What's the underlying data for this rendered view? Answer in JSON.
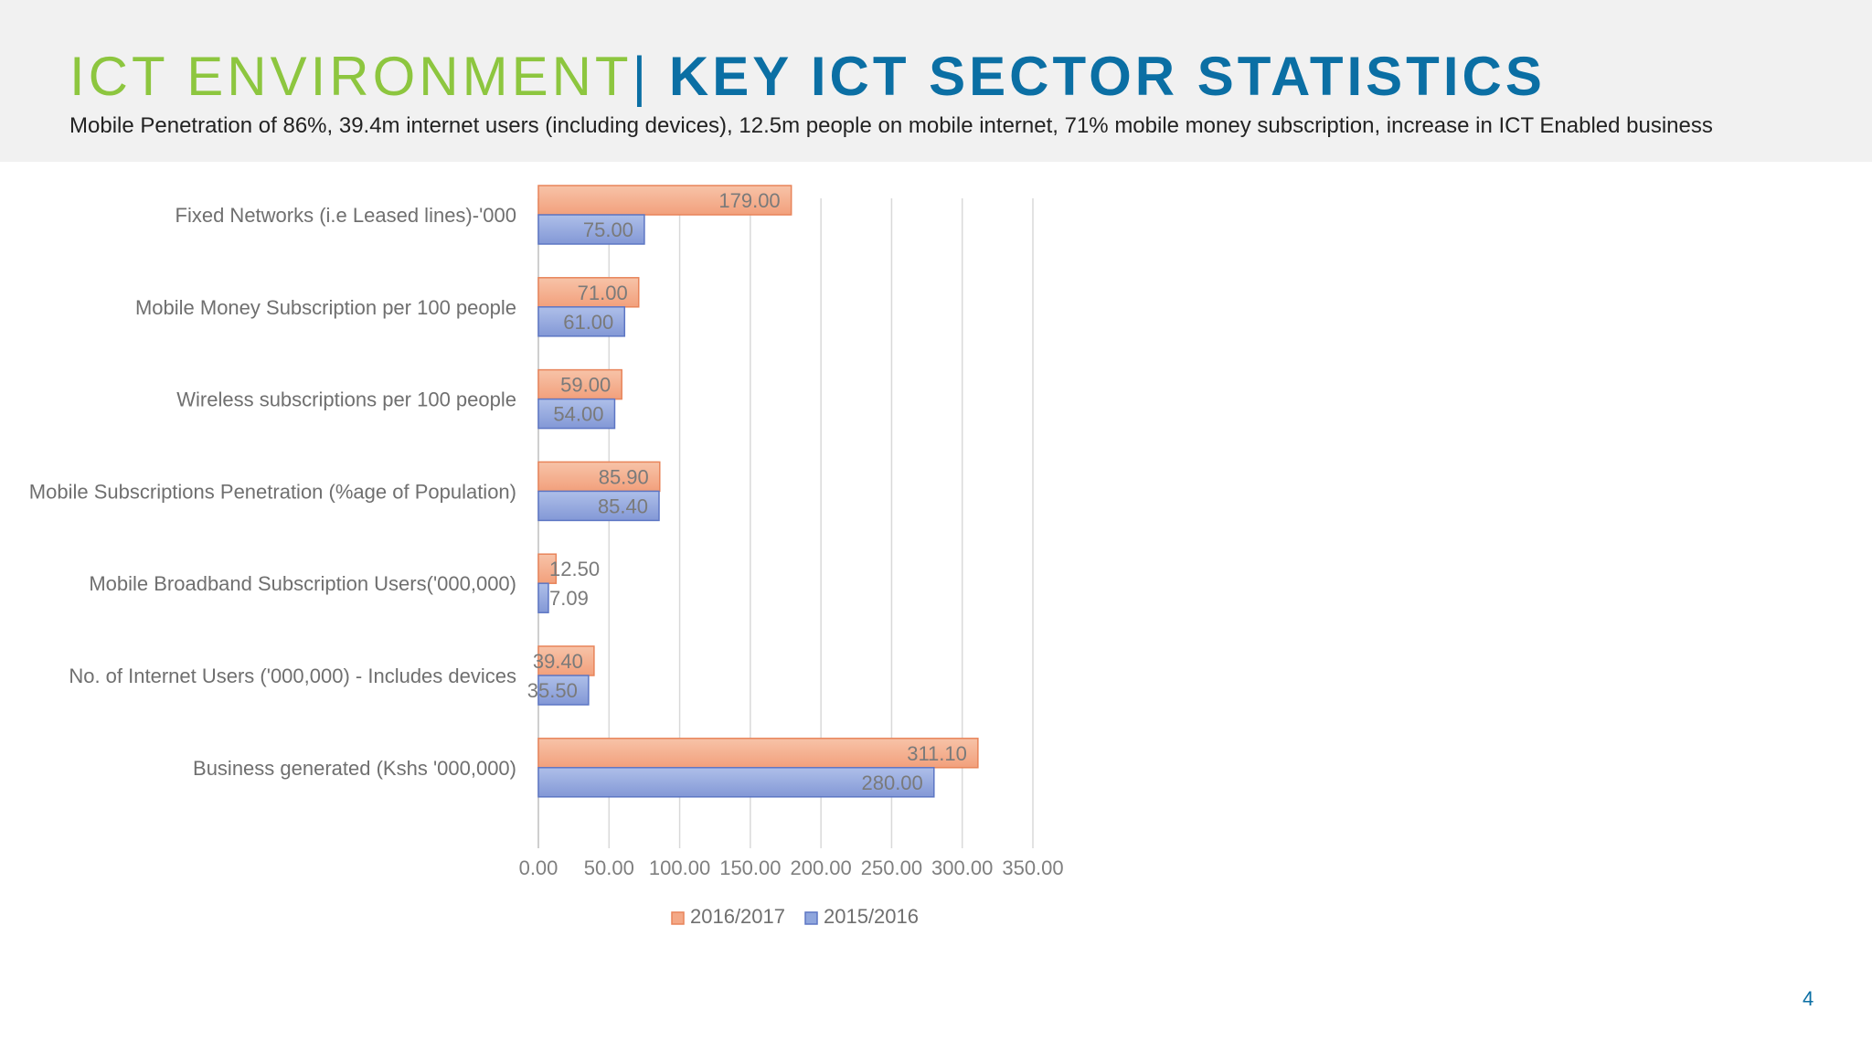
{
  "header": {
    "title_part1": "ICT ENVIRONMENT",
    "title_separator": "| ",
    "title_part2": "KEY ICT SECTOR STATISTICS",
    "subtitle": "Mobile Penetration of 86%, 39.4m internet users (including devices), 12.5m people on mobile internet, 71% mobile money subscription, increase in ICT Enabled business"
  },
  "page_number": "4",
  "colors": {
    "title_green": "#8dc63f",
    "title_blue": "#0b6fa4",
    "series_2016_2017": "#f4a886",
    "series_2015_2016": "#8fa6dd"
  },
  "chart_data": {
    "type": "bar",
    "orientation": "horizontal",
    "categories": [
      "Fixed Networks (i.e Leased lines)-'000",
      "Mobile Money Subscription per 100 people",
      "Wireless subscriptions per 100 people",
      "Mobile Subscriptions Penetration (%age of Population)",
      "Mobile Broadband Subscription Users('000,000)",
      "No. of Internet Users ('000,000) - Includes devices",
      "Business generated (Kshs '000,000)"
    ],
    "series": [
      {
        "name": "2016/2017",
        "values": [
          179.0,
          71.0,
          59.0,
          85.9,
          12.5,
          39.4,
          311.1
        ],
        "labels": [
          "179.00",
          "71.00",
          "59.00",
          "85.90",
          "12.50",
          "39.40",
          "311.10"
        ]
      },
      {
        "name": "2015/2016",
        "values": [
          75.0,
          61.0,
          54.0,
          85.4,
          7.09,
          35.5,
          280.0
        ],
        "labels": [
          "75.00",
          "61.00",
          "54.00",
          "85.40",
          "7.09",
          "35.50",
          "280.00"
        ]
      }
    ],
    "xticks": [
      "0.00",
      "50.00",
      "100.00",
      "150.00",
      "200.00",
      "250.00",
      "300.00",
      "350.00"
    ],
    "xlim": [
      0,
      350
    ],
    "grid": true,
    "legend_position": "bottom",
    "title": "",
    "xlabel": "",
    "ylabel": ""
  }
}
